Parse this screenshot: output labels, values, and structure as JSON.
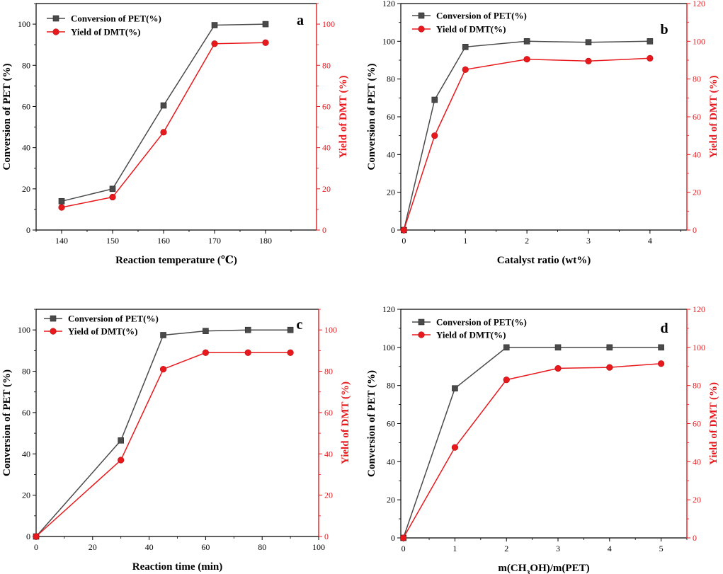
{
  "colors": {
    "left_axis": "#000000",
    "right_axis": "#e8191d",
    "conversion": "#4a4a4a",
    "yield": "#e8191d"
  },
  "chart_data": [
    {
      "panel": "a",
      "type": "line",
      "xlabel": "Reaction temperature (℃)",
      "ylabel": "Conversion of PET (%)",
      "y2label": "Yield of DMT (%)",
      "xlim": [
        135,
        190
      ],
      "ylim": [
        0,
        110
      ],
      "y2lim": [
        0,
        110
      ],
      "xticks": [
        140,
        150,
        160,
        170,
        180
      ],
      "yticks": [
        0,
        20,
        40,
        60,
        80,
        100
      ],
      "y2ticks": [
        0,
        20,
        40,
        60,
        80,
        100
      ],
      "legend_position": "top-left",
      "series": [
        {
          "name": "Conversion of PET(%)",
          "axis": "left",
          "marker": "square",
          "x": [
            140,
            150,
            160,
            170,
            180
          ],
          "values": [
            14,
            20,
            60.5,
            99.5,
            100
          ]
        },
        {
          "name": "Yield of DMT(%)",
          "axis": "right",
          "marker": "circle",
          "x": [
            140,
            150,
            160,
            170,
            180
          ],
          "values": [
            11,
            16,
            47.5,
            90.5,
            91
          ]
        }
      ]
    },
    {
      "panel": "b",
      "type": "line",
      "xlabel": "Catalyst ratio (wt%)",
      "ylabel": "Conversion of PET (%)",
      "y2label": "Yield of DMT (%)",
      "xlim": [
        -0.05,
        4.6
      ],
      "ylim": [
        0,
        120
      ],
      "y2lim": [
        0,
        120
      ],
      "xticks": [
        0,
        1,
        2,
        3,
        4
      ],
      "yticks": [
        0,
        20,
        40,
        60,
        80,
        100,
        120
      ],
      "y2ticks": [
        0,
        20,
        40,
        60,
        80,
        100,
        120
      ],
      "legend_position": "top-left",
      "series": [
        {
          "name": "Conversion of PET(%)",
          "axis": "left",
          "marker": "square",
          "x": [
            0,
            0.5,
            1,
            2,
            3,
            4
          ],
          "values": [
            0,
            69,
            97,
            100,
            99.5,
            100
          ]
        },
        {
          "name": "Yield of DMT(%)",
          "axis": "right",
          "marker": "circle",
          "x": [
            0,
            0.5,
            1,
            2,
            3,
            4
          ],
          "values": [
            0,
            50,
            85,
            90.5,
            89.5,
            91
          ]
        }
      ]
    },
    {
      "panel": "c",
      "type": "line",
      "xlabel": "Reaction time (min)",
      "ylabel": "Conversion of PET (%)",
      "y2label": "Yield of DMT (%)",
      "xlim": [
        0,
        100
      ],
      "ylim": [
        0,
        110
      ],
      "y2lim": [
        0,
        110
      ],
      "xticks": [
        0,
        20,
        40,
        60,
        80,
        100
      ],
      "yticks": [
        0,
        20,
        40,
        60,
        80,
        100
      ],
      "y2ticks": [
        0,
        20,
        40,
        60,
        80,
        100
      ],
      "legend_position": "top-left",
      "series": [
        {
          "name": "Conversion of PET(%)",
          "axis": "left",
          "marker": "square",
          "x": [
            0,
            30,
            45,
            60,
            75,
            90
          ],
          "values": [
            0,
            46.5,
            97.5,
            99.5,
            100,
            100
          ]
        },
        {
          "name": "Yield of DMT(%)",
          "axis": "right",
          "marker": "circle",
          "x": [
            0,
            30,
            45,
            60,
            75,
            90
          ],
          "values": [
            0,
            37,
            81,
            89,
            89,
            89
          ]
        }
      ]
    },
    {
      "panel": "d",
      "type": "line",
      "xlabel": "m(CH₃OH)/m(PET)",
      "ylabel": "Conversion of PET (%)",
      "y2label": "Yield of DMT (%)",
      "xlim": [
        -0.05,
        5.5
      ],
      "ylim": [
        0,
        120
      ],
      "y2lim": [
        0,
        120
      ],
      "xticks": [
        0,
        1,
        2,
        3,
        4,
        5
      ],
      "yticks": [
        0,
        20,
        40,
        60,
        80,
        100,
        120
      ],
      "y2ticks": [
        0,
        20,
        40,
        60,
        80,
        100,
        120
      ],
      "legend_position": "top-left",
      "series": [
        {
          "name": "Conversion of PET(%)",
          "axis": "left",
          "marker": "square",
          "x": [
            0,
            1,
            2,
            3,
            4,
            5
          ],
          "values": [
            0,
            78.5,
            100,
            100,
            100,
            100
          ]
        },
        {
          "name": "Yield of DMT(%)",
          "axis": "right",
          "marker": "circle",
          "x": [
            0,
            1,
            2,
            3,
            4,
            5
          ],
          "values": [
            0,
            47.5,
            83,
            89,
            89.5,
            91.5
          ]
        }
      ]
    }
  ]
}
